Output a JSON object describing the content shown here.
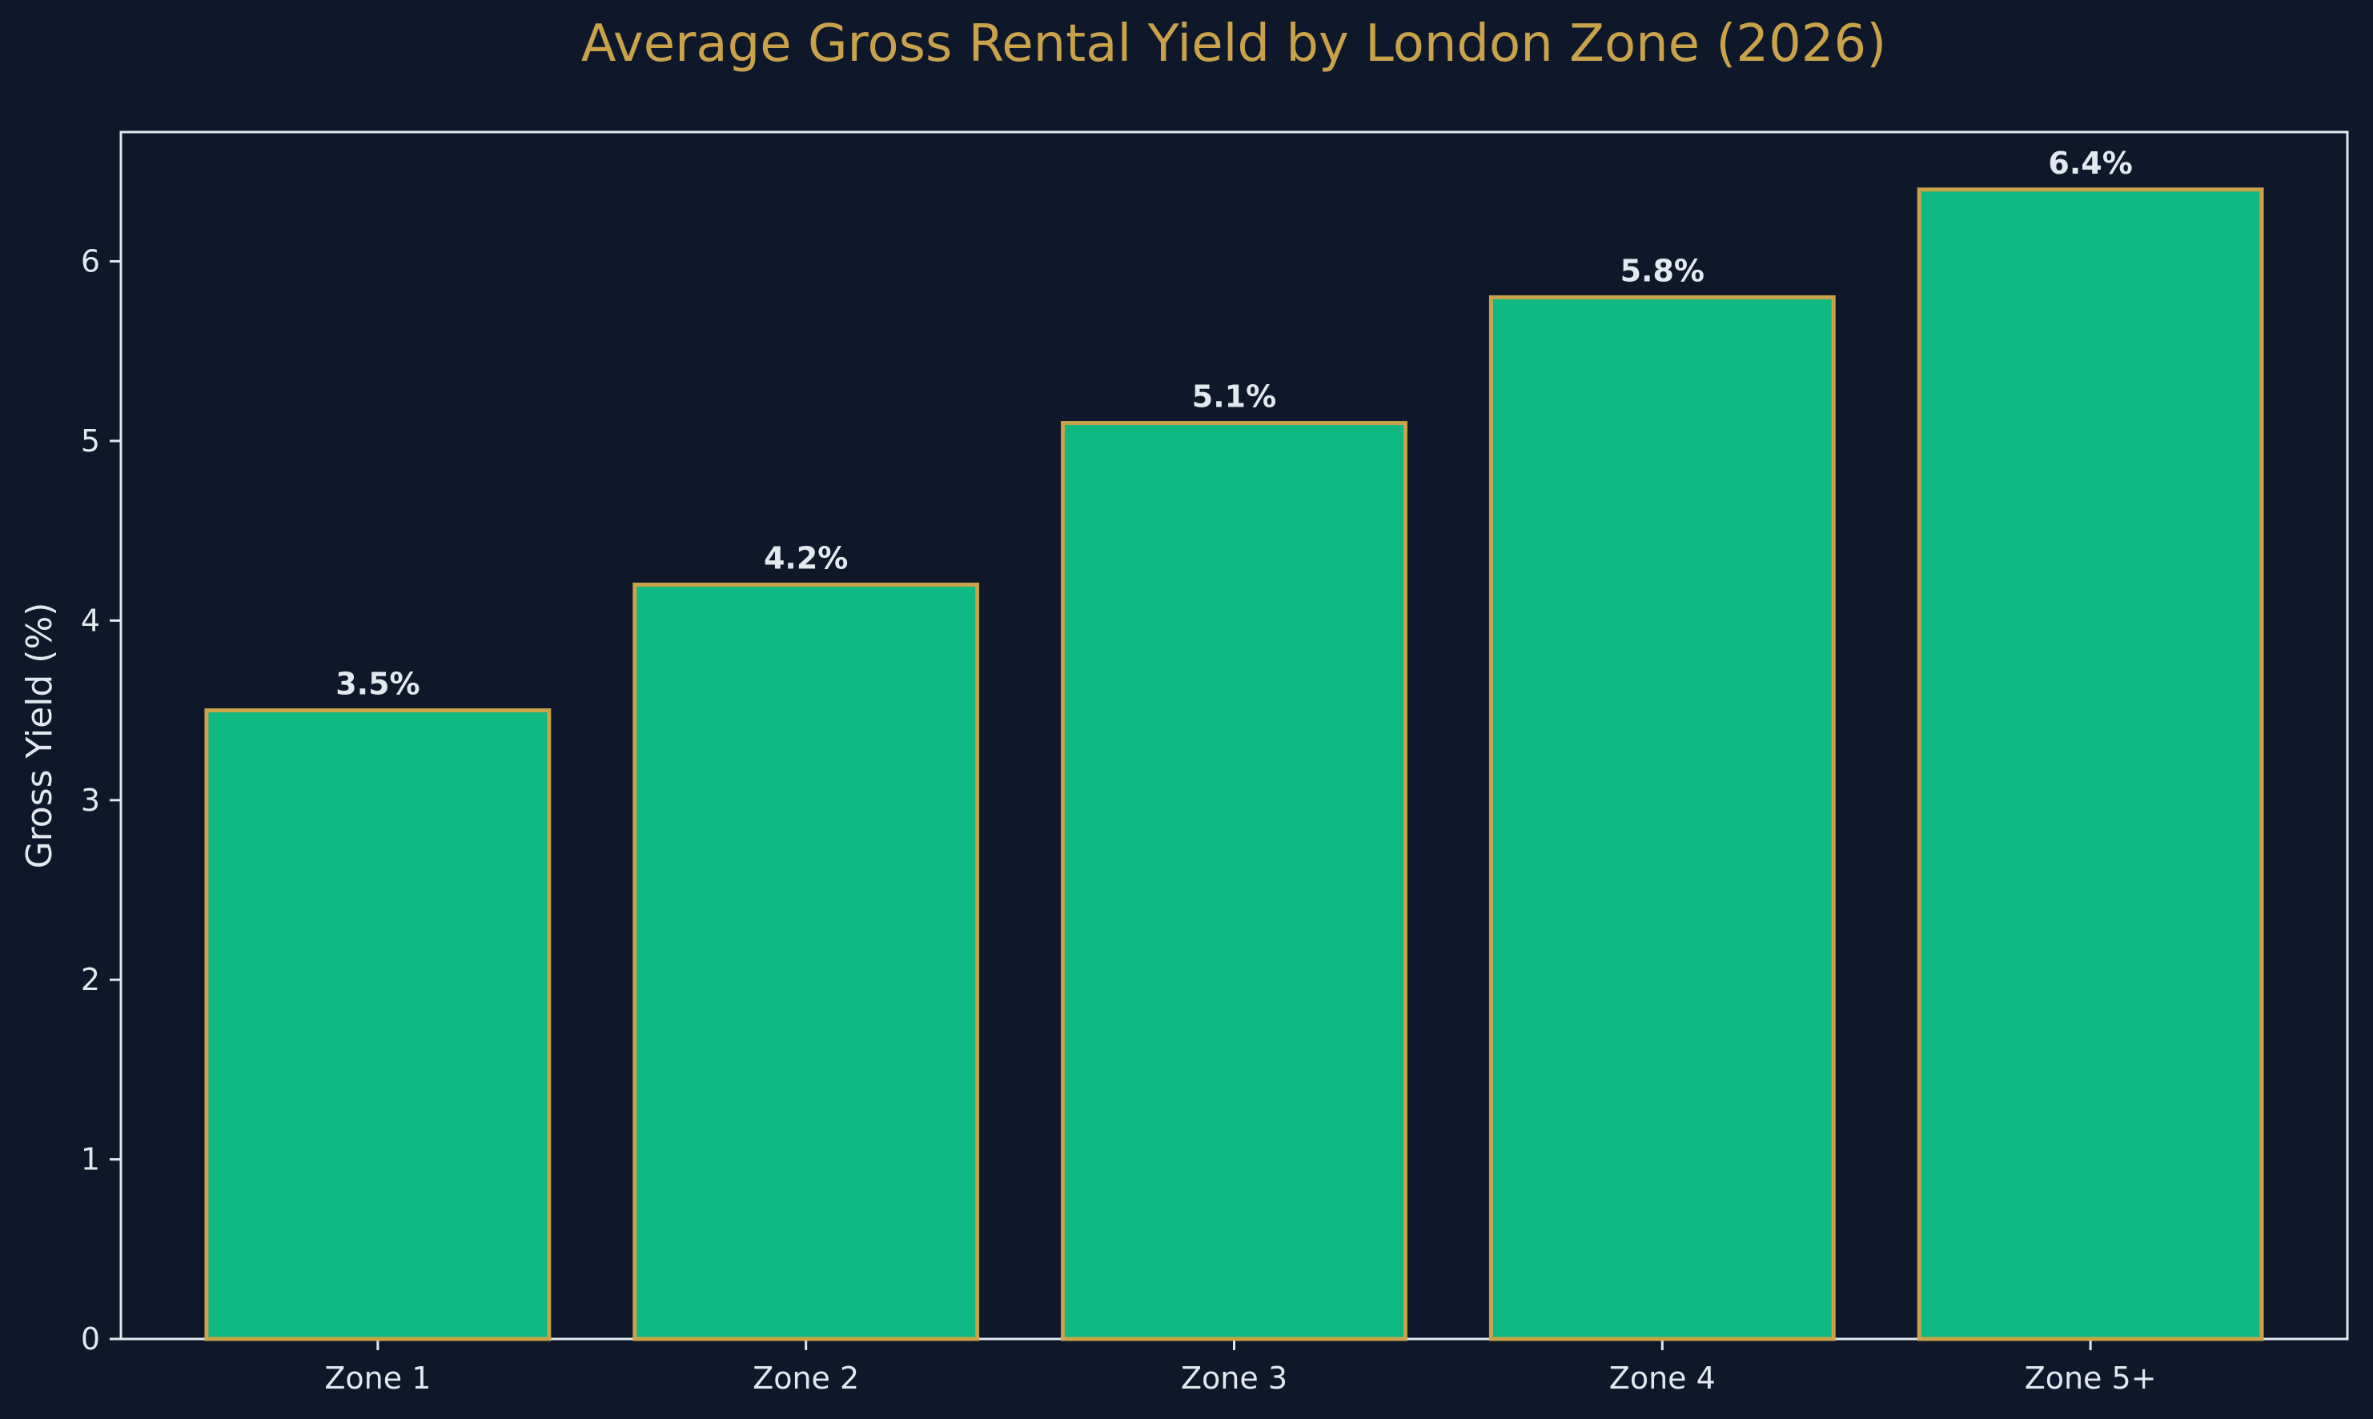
{
  "chart_data": {
    "type": "bar",
    "title": "Average Gross Rental Yield by London Zone (2026)",
    "xlabel": "",
    "ylabel": "Gross Yield (%)",
    "categories": [
      "Zone 1",
      "Zone 2",
      "Zone 3",
      "Zone 4",
      "Zone 5+"
    ],
    "values": [
      3.5,
      4.2,
      5.1,
      5.8,
      6.4
    ],
    "data_labels": [
      "3.5%",
      "4.2%",
      "5.1%",
      "5.8%",
      "6.4%"
    ],
    "ylim": [
      0,
      6.72
    ],
    "yticks": [
      0,
      1,
      2,
      3,
      4,
      5,
      6
    ],
    "grid": false,
    "legend": "none"
  },
  "colors": {
    "background": "#0f172a",
    "bar_fill": "#10b981",
    "bar_edge": "#c9a24a",
    "title": "#c9a24a",
    "text": "#e2e8f0",
    "axes": "#e2e8f0"
  }
}
